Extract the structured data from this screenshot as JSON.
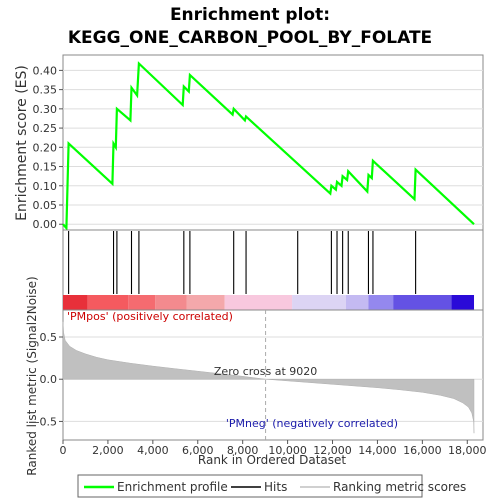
{
  "chart_data": {
    "type": "line",
    "title_line1": "Enrichment plot:",
    "title_line2": "KEGG_ONE_CARBON_POOL_BY_FOLATE",
    "es_panel": {
      "ylabel": "Enrichment score (ES)",
      "ylim": [
        -0.015,
        0.44
      ],
      "yticks": [
        "0.00",
        "0.05",
        "0.10",
        "0.15",
        "0.20",
        "0.25",
        "0.30",
        "0.35",
        "0.40"
      ],
      "ytick_values": [
        0.0,
        0.05,
        0.1,
        0.15,
        0.2,
        0.25,
        0.3,
        0.35,
        0.4
      ],
      "series": [
        {
          "name": "Enrichment profile",
          "color": "#00ff00",
          "x": [
            0,
            150,
            250,
            2200,
            2250,
            2350,
            2400,
            3000,
            3050,
            3300,
            3380,
            5330,
            5380,
            5600,
            5650,
            7550,
            7600,
            8100,
            8150,
            11900,
            11950,
            12150,
            12200,
            12400,
            12450,
            12650,
            12700,
            13550,
            13600,
            13750,
            13800,
            15650,
            15700,
            18300
          ],
          "y": [
            0.0,
            -0.01,
            0.21,
            0.105,
            0.21,
            0.2,
            0.3,
            0.27,
            0.355,
            0.335,
            0.418,
            0.31,
            0.358,
            0.345,
            0.388,
            0.285,
            0.3,
            0.27,
            0.28,
            0.08,
            0.1,
            0.09,
            0.11,
            0.1,
            0.125,
            0.115,
            0.138,
            0.085,
            0.128,
            0.12,
            0.165,
            0.065,
            0.142,
            0.0
          ]
        }
      ]
    },
    "hits": {
      "name": "Hits",
      "positions": [
        250,
        2250,
        2400,
        3050,
        3380,
        5380,
        5650,
        7600,
        8150,
        10450,
        11950,
        12200,
        12450,
        12700,
        13600,
        13800,
        15700
      ]
    },
    "ranking_bar": {
      "segments": [
        {
          "from": 0,
          "to": 1100,
          "color": "#e8303a"
        },
        {
          "from": 1100,
          "to": 2900,
          "color": "#f55a5f"
        },
        {
          "from": 2900,
          "to": 4100,
          "color": "#f56b70"
        },
        {
          "from": 4100,
          "to": 5500,
          "color": "#f38a8e"
        },
        {
          "from": 5500,
          "to": 7200,
          "color": "#f4a8ab"
        },
        {
          "from": 7200,
          "to": 10200,
          "color": "#f8c8de"
        },
        {
          "from": 10200,
          "to": 12600,
          "color": "#dcd4f4"
        },
        {
          "from": 12600,
          "to": 13600,
          "color": "#c4baf2"
        },
        {
          "from": 13600,
          "to": 14700,
          "color": "#9488ee"
        },
        {
          "from": 14700,
          "to": 17300,
          "color": "#6452e4"
        },
        {
          "from": 17300,
          "to": 18300,
          "color": "#2a0ad8"
        }
      ]
    },
    "metric_panel": {
      "ylabel": "Ranked list metric (Signal2Noise)",
      "ylim": [
        -0.72,
        0.82
      ],
      "yticks": [
        "-0.5",
        "0.0",
        "0.5"
      ],
      "ytick_values": [
        -0.5,
        0.0,
        0.5
      ],
      "fill_color": "#c0c0c0",
      "series": [
        {
          "name": "Ranking metric scores",
          "x": [
            0,
            30,
            100,
            300,
            600,
            1000,
            1500,
            2000,
            3000,
            4000,
            5000,
            6000,
            7000,
            8000,
            9020,
            10000,
            11000,
            12000,
            13000,
            14000,
            15000,
            16000,
            16800,
            17400,
            17800,
            18050,
            18200,
            18280,
            18300
          ],
          "y": [
            0.68,
            0.55,
            0.46,
            0.39,
            0.34,
            0.3,
            0.26,
            0.23,
            0.19,
            0.155,
            0.125,
            0.095,
            0.065,
            0.035,
            0.0,
            -0.02,
            -0.04,
            -0.06,
            -0.08,
            -0.1,
            -0.125,
            -0.155,
            -0.19,
            -0.23,
            -0.28,
            -0.33,
            -0.4,
            -0.5,
            -0.64
          ]
        }
      ],
      "zero_cross_label": "Zero cross at 9020",
      "zero_cross_x": 9020,
      "pos_label": "'PMpos' (positively correlated)",
      "neg_label": "'PMneg' (negatively correlated)"
    },
    "x_axis": {
      "xlabel": "Rank in Ordered Dataset",
      "xlim": [
        0,
        18700
      ],
      "xticks": [
        "0",
        "2,000",
        "4,000",
        "6,000",
        "8,000",
        "10,000",
        "12,000",
        "14,000",
        "16,000",
        "18,000"
      ],
      "xtick_values": [
        0,
        2000,
        4000,
        6000,
        8000,
        10000,
        12000,
        14000,
        16000,
        18000
      ],
      "max_rank": 18300
    },
    "legend": {
      "placement": "bottom",
      "items": [
        {
          "label": "Enrichment profile",
          "color": "#00ff00",
          "kind": "line"
        },
        {
          "label": "Hits",
          "color": "#000000",
          "kind": "line"
        },
        {
          "label": "Ranking metric scores",
          "color": "#c0c0c0",
          "kind": "line"
        }
      ]
    }
  }
}
